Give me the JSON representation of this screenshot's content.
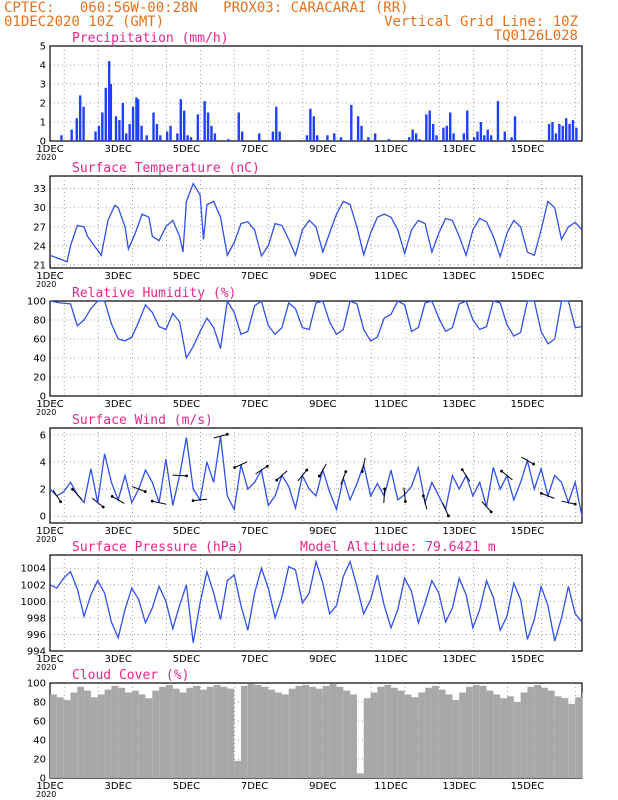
{
  "header": {
    "line1_left": "CPTEC:   060:56W-00:28N   PROX03: CARACARAI (RR)",
    "line2_left": "01DEC2020 10Z (GMT)",
    "line2_right": "Vertical Grid Line: 10Z",
    "line3_right": "TQ0126L028"
  },
  "colors": {
    "line": "#3050f0",
    "bar": "#2040ff",
    "cloud": "#a8a8a8",
    "title": "#e8278b",
    "header": "#e8701c"
  },
  "chart_data": [
    {
      "type": "bar",
      "title": "Precipitation (mm/h)",
      "ylim": [
        0,
        5
      ],
      "yticks": [
        0,
        1,
        2,
        3,
        4,
        5
      ],
      "x_start_day": 1,
      "x_end_day": 16.6,
      "xticks": [
        "1DEC",
        "3DEC",
        "5DEC",
        "7DEC",
        "9DEC",
        "11DEC",
        "13DEC",
        "15DEC"
      ],
      "year_label": "2020",
      "x": [
        1.3,
        1.6,
        1.75,
        1.85,
        1.95,
        2.3,
        2.4,
        2.5,
        2.6,
        2.7,
        2.75,
        2.9,
        3.0,
        3.1,
        3.2,
        3.3,
        3.4,
        3.5,
        3.55,
        3.65,
        3.8,
        4.0,
        4.1,
        4.2,
        4.4,
        4.5,
        4.7,
        4.8,
        4.9,
        5.0,
        5.1,
        5.3,
        5.5,
        5.6,
        5.7,
        5.8,
        6.2,
        6.5,
        6.6,
        7.1,
        7.5,
        7.6,
        7.7,
        8.5,
        8.6,
        8.7,
        8.8,
        9.1,
        9.3,
        9.5,
        9.8,
        10.0,
        10.1,
        10.3,
        10.5,
        10.9,
        11.5,
        11.6,
        11.7,
        11.8,
        12.0,
        12.1,
        12.2,
        12.3,
        12.5,
        12.6,
        12.7,
        12.8,
        13.1,
        13.2,
        13.4,
        13.5,
        13.6,
        13.7,
        13.8,
        13.9,
        14.1,
        14.3,
        14.5,
        14.6,
        15.6,
        15.7,
        15.8,
        15.9,
        16.0,
        16.1,
        16.2,
        16.3,
        16.4
      ],
      "values": [
        0.3,
        0.6,
        1.2,
        2.4,
        1.8,
        0.5,
        0.8,
        1.5,
        2.8,
        4.2,
        3.0,
        1.3,
        1.1,
        2.0,
        0.4,
        0.9,
        1.8,
        2.3,
        2.2,
        0.8,
        0.3,
        1.5,
        0.9,
        0.3,
        0.5,
        0.8,
        0.4,
        2.2,
        1.6,
        0.3,
        0.2,
        1.4,
        2.1,
        1.5,
        0.8,
        0.4,
        0.1,
        1.5,
        0.5,
        0.4,
        0.5,
        1.8,
        0.5,
        0.3,
        1.7,
        1.3,
        0.3,
        0.3,
        0.4,
        0.2,
        1.9,
        1.3,
        0.8,
        0.2,
        0.4,
        0.1,
        0.2,
        0.6,
        0.4,
        0.1,
        1.4,
        1.6,
        0.9,
        0.3,
        0.7,
        0.8,
        1.5,
        0.4,
        0.4,
        1.6,
        0.2,
        0.5,
        1.0,
        0.3,
        0.6,
        0.3,
        2.1,
        0.5,
        0.2,
        1.3,
        0.9,
        1.0,
        0.4,
        0.9,
        0.8,
        1.2,
        0.9,
        1.1,
        0.7
      ]
    },
    {
      "type": "line",
      "title": "Surface Temperature (nC)",
      "ylim": [
        20.5,
        35
      ],
      "yticks": [
        21,
        24,
        27,
        30,
        33
      ],
      "x_start_day": 1,
      "x_end_day": 16.6,
      "xticks": [
        "1DEC",
        "3DEC",
        "5DEC",
        "7DEC",
        "9DEC",
        "11DEC",
        "13DEC",
        "15DEC"
      ],
      "year_label": "2020",
      "x": [
        1.0,
        1.3,
        1.5,
        1.6,
        1.8,
        2.0,
        2.1,
        2.3,
        2.5,
        2.7,
        2.9,
        3.0,
        3.2,
        3.3,
        3.5,
        3.7,
        3.9,
        4.0,
        4.2,
        4.4,
        4.6,
        4.8,
        4.9,
        5.0,
        5.2,
        5.4,
        5.5,
        5.6,
        5.8,
        6.0,
        6.2,
        6.4,
        6.6,
        6.8,
        7.0,
        7.2,
        7.4,
        7.6,
        7.8,
        8.0,
        8.2,
        8.4,
        8.6,
        8.8,
        9.0,
        9.2,
        9.4,
        9.6,
        9.8,
        10.0,
        10.2,
        10.4,
        10.6,
        10.8,
        11.0,
        11.2,
        11.4,
        11.6,
        11.8,
        12.0,
        12.2,
        12.4,
        12.6,
        12.8,
        13.0,
        13.2,
        13.4,
        13.6,
        13.8,
        14.0,
        14.2,
        14.4,
        14.6,
        14.8,
        15.0,
        15.2,
        15.4,
        15.6,
        15.8,
        16.0,
        16.2,
        16.4,
        16.6
      ],
      "values": [
        22.5,
        21.9,
        21.5,
        24.0,
        27.2,
        27.0,
        25.5,
        24.0,
        22.5,
        28.0,
        30.4,
        30.0,
        27.0,
        23.5,
        26.0,
        29.0,
        28.5,
        25.5,
        24.8,
        27.0,
        28.0,
        25.5,
        23.0,
        31.0,
        33.8,
        32.0,
        25.0,
        30.5,
        31.0,
        28.5,
        22.5,
        24.5,
        27.5,
        27.8,
        26.5,
        22.4,
        24.0,
        27.5,
        27.2,
        25.0,
        22.5,
        26.5,
        28.0,
        27.0,
        23.0,
        26.0,
        29.0,
        31.0,
        30.5,
        27.0,
        22.6,
        26.0,
        28.5,
        29.0,
        28.5,
        26.5,
        22.8,
        26.5,
        28.0,
        27.5,
        23.0,
        26.0,
        28.3,
        28.0,
        25.5,
        22.5,
        26.5,
        28.3,
        27.8,
        25.5,
        22.3,
        26.0,
        28.0,
        27.0,
        23.0,
        22.5,
        26.5,
        31.0,
        30.0,
        25.0,
        27.0,
        27.7,
        26.5
      ]
    },
    {
      "type": "line",
      "title": "Relative Humidity (%)",
      "ylim": [
        0,
        100
      ],
      "yticks": [
        0,
        20,
        40,
        60,
        80,
        100
      ],
      "x_start_day": 1,
      "x_end_day": 16.6,
      "xticks": [
        "1DEC",
        "3DEC",
        "5DEC",
        "7DEC",
        "9DEC",
        "11DEC",
        "13DEC",
        "15DEC"
      ],
      "year_label": "2020",
      "x": [
        1.0,
        1.3,
        1.6,
        1.8,
        2.0,
        2.2,
        2.4,
        2.6,
        2.8,
        3.0,
        3.2,
        3.4,
        3.6,
        3.8,
        4.0,
        4.2,
        4.4,
        4.6,
        4.8,
        5.0,
        5.2,
        5.4,
        5.6,
        5.8,
        6.0,
        6.2,
        6.4,
        6.6,
        6.8,
        7.0,
        7.2,
        7.4,
        7.6,
        7.8,
        8.0,
        8.2,
        8.4,
        8.6,
        8.8,
        9.0,
        9.2,
        9.4,
        9.6,
        9.8,
        10.0,
        10.2,
        10.4,
        10.6,
        10.8,
        11.0,
        11.2,
        11.4,
        11.6,
        11.8,
        12.0,
        12.2,
        12.4,
        12.6,
        12.8,
        13.0,
        13.2,
        13.4,
        13.6,
        13.8,
        14.0,
        14.2,
        14.4,
        14.6,
        14.8,
        15.0,
        15.2,
        15.4,
        15.6,
        15.8,
        16.0,
        16.2,
        16.4,
        16.6
      ],
      "values": [
        100,
        98,
        97,
        74,
        80,
        92,
        100,
        100,
        76,
        60,
        58,
        62,
        78,
        96,
        88,
        73,
        70,
        87,
        78,
        40,
        52,
        68,
        82,
        72,
        50,
        100,
        88,
        65,
        68,
        95,
        100,
        74,
        65,
        72,
        98,
        92,
        72,
        70,
        98,
        100,
        78,
        65,
        70,
        100,
        97,
        70,
        58,
        62,
        82,
        86,
        100,
        96,
        68,
        72,
        98,
        100,
        82,
        68,
        72,
        97,
        100,
        80,
        70,
        73,
        100,
        98,
        75,
        63,
        67,
        100,
        100,
        68,
        55,
        60,
        100,
        100,
        72,
        73
      ]
    },
    {
      "type": "line",
      "title": "Surface Wind (m/s)",
      "ylim": [
        -0.5,
        6.5
      ],
      "yticks": [
        0,
        2,
        4,
        6
      ],
      "x_start_day": 1,
      "x_end_day": 16.6,
      "xticks": [
        "1DEC",
        "3DEC",
        "5DEC",
        "7DEC",
        "9DEC",
        "11DEC",
        "13DEC",
        "15DEC"
      ],
      "year_label": "2020",
      "x": [
        1.0,
        1.2,
        1.4,
        1.6,
        1.8,
        2.0,
        2.2,
        2.4,
        2.6,
        2.8,
        3.0,
        3.2,
        3.4,
        3.6,
        3.8,
        4.0,
        4.2,
        4.4,
        4.6,
        4.8,
        5.0,
        5.2,
        5.4,
        5.6,
        5.8,
        6.0,
        6.2,
        6.4,
        6.6,
        6.8,
        7.0,
        7.2,
        7.4,
        7.6,
        7.8,
        8.0,
        8.2,
        8.4,
        8.6,
        8.8,
        9.0,
        9.2,
        9.4,
        9.6,
        9.8,
        10.0,
        10.2,
        10.4,
        10.6,
        10.8,
        11.0,
        11.2,
        11.4,
        11.6,
        11.8,
        12.0,
        12.2,
        12.4,
        12.6,
        12.8,
        13.0,
        13.2,
        13.4,
        13.6,
        13.8,
        14.0,
        14.2,
        14.4,
        14.6,
        14.8,
        15.0,
        15.2,
        15.4,
        15.6,
        15.8,
        16.0,
        16.2,
        16.4,
        16.6
      ],
      "values": [
        2.0,
        1.5,
        1.8,
        2.5,
        1.6,
        1.0,
        3.5,
        1.0,
        4.6,
        2.5,
        1.2,
        3.0,
        1.0,
        2.0,
        3.4,
        2.5,
        1.0,
        4.2,
        0.8,
        3.0,
        5.8,
        2.0,
        1.2,
        4.0,
        2.5,
        5.9,
        1.5,
        0.5,
        3.8,
        2.0,
        2.5,
        3.4,
        0.8,
        1.5,
        3.0,
        2.2,
        0.6,
        3.0,
        2.0,
        1.5,
        3.4,
        1.8,
        0.5,
        2.8,
        1.2,
        2.4,
        3.8,
        1.5,
        2.4,
        1.5,
        3.4,
        1.2,
        1.6,
        2.2,
        3.6,
        1.0,
        2.5,
        1.5,
        0.5,
        3.0,
        2.0,
        3.0,
        1.5,
        2.5,
        0.7,
        3.6,
        2.0,
        3.0,
        1.2,
        2.5,
        4.1,
        2.0,
        3.5,
        1.5,
        3.0,
        2.5,
        1.0,
        2.5,
        0.0
      ]
    },
    {
      "type": "line",
      "title": "Surface Pressure (hPa)",
      "annotation": "Model Altitude: 79.6421  m",
      "ylim": [
        994,
        1005.6
      ],
      "yticks": [
        994,
        996,
        998,
        1000,
        1002,
        1004
      ],
      "x_start_day": 1,
      "x_end_day": 16.6,
      "xticks": [
        "1DEC",
        "3DEC",
        "5DEC",
        "7DEC",
        "9DEC",
        "11DEC",
        "13DEC",
        "15DEC"
      ],
      "year_label": "2020",
      "x": [
        1.0,
        1.2,
        1.4,
        1.6,
        1.8,
        2.0,
        2.2,
        2.4,
        2.6,
        2.8,
        3.0,
        3.2,
        3.4,
        3.6,
        3.8,
        4.0,
        4.2,
        4.4,
        4.6,
        4.8,
        5.0,
        5.2,
        5.4,
        5.6,
        5.8,
        6.0,
        6.2,
        6.4,
        6.6,
        6.8,
        7.0,
        7.2,
        7.4,
        7.6,
        7.8,
        8.0,
        8.2,
        8.4,
        8.6,
        8.8,
        9.0,
        9.2,
        9.4,
        9.6,
        9.8,
        10.0,
        10.2,
        10.4,
        10.6,
        10.8,
        11.0,
        11.2,
        11.4,
        11.6,
        11.8,
        12.0,
        12.2,
        12.4,
        12.6,
        12.8,
        13.0,
        13.2,
        13.4,
        13.6,
        13.8,
        14.0,
        14.2,
        14.4,
        14.6,
        14.8,
        15.0,
        15.2,
        15.4,
        15.6,
        15.8,
        16.0,
        16.2,
        16.4,
        16.6
      ],
      "values": [
        1002.0,
        1001.6,
        1002.8,
        1003.6,
        1001.5,
        998.2,
        1000.8,
        1002.5,
        1001.0,
        997.5,
        995.6,
        999.0,
        1001.6,
        1000.2,
        997.4,
        999.2,
        1001.8,
        1000.0,
        996.7,
        999.5,
        1002.0,
        995.0,
        999.8,
        1003.6,
        1001.0,
        997.8,
        1002.5,
        1003.2,
        999.5,
        996.5,
        1001.0,
        1004.0,
        1001.6,
        998.0,
        1000.5,
        1004.2,
        1003.8,
        999.8,
        1001.0,
        1004.8,
        1002.2,
        998.5,
        999.5,
        1003.0,
        1004.8,
        1001.8,
        998.5,
        1000.2,
        1003.2,
        999.5,
        996.8,
        999.0,
        1002.8,
        1001.2,
        997.4,
        999.8,
        1002.5,
        1001.0,
        997.5,
        999.2,
        1002.8,
        1000.8,
        996.8,
        999.0,
        1002.5,
        1000.5,
        996.5,
        998.2,
        1002.2,
        1000.2,
        995.4,
        997.8,
        1001.8,
        999.5,
        995.2,
        998.0,
        1001.8,
        998.5,
        997.5
      ]
    },
    {
      "type": "area",
      "title": "Cloud Cover (%)",
      "ylim": [
        0,
        100
      ],
      "yticks": [
        0,
        20,
        40,
        60,
        80,
        100
      ],
      "x_start_day": 1,
      "x_end_day": 16.6,
      "xticks": [
        "1DEC",
        "3DEC",
        "5DEC",
        "7DEC",
        "9DEC",
        "11DEC",
        "13DEC",
        "15DEC"
      ],
      "year_label": "2020",
      "x": [
        1.0,
        1.2,
        1.4,
        1.6,
        1.8,
        2.0,
        2.2,
        2.4,
        2.6,
        2.8,
        3.0,
        3.2,
        3.4,
        3.6,
        3.8,
        4.0,
        4.2,
        4.4,
        4.6,
        4.8,
        5.0,
        5.2,
        5.4,
        5.6,
        5.8,
        6.0,
        6.2,
        6.4,
        6.6,
        6.8,
        7.0,
        7.2,
        7.4,
        7.6,
        7.8,
        8.0,
        8.2,
        8.4,
        8.6,
        8.8,
        9.0,
        9.2,
        9.4,
        9.6,
        9.8,
        10.0,
        10.2,
        10.4,
        10.6,
        10.8,
        11.0,
        11.2,
        11.4,
        11.6,
        11.8,
        12.0,
        12.2,
        12.4,
        12.6,
        12.8,
        13.0,
        13.2,
        13.4,
        13.6,
        13.8,
        14.0,
        14.2,
        14.4,
        14.6,
        14.8,
        15.0,
        15.2,
        15.4,
        15.6,
        15.8,
        16.0,
        16.2,
        16.4,
        16.6
      ],
      "values": [
        88,
        85,
        82,
        90,
        96,
        92,
        85,
        88,
        93,
        97,
        95,
        90,
        92,
        88,
        84,
        92,
        96,
        98,
        94,
        90,
        95,
        97,
        93,
        96,
        98,
        96,
        94,
        18,
        97,
        99,
        98,
        96,
        93,
        90,
        88,
        94,
        97,
        98,
        96,
        94,
        97,
        99,
        96,
        92,
        88,
        5,
        84,
        90,
        96,
        98,
        95,
        92,
        88,
        85,
        90,
        95,
        97,
        93,
        88,
        82,
        90,
        96,
        98,
        97,
        92,
        88,
        84,
        86,
        80,
        90,
        96,
        98,
        95,
        92,
        86,
        84,
        78,
        85,
        90
      ]
    }
  ]
}
